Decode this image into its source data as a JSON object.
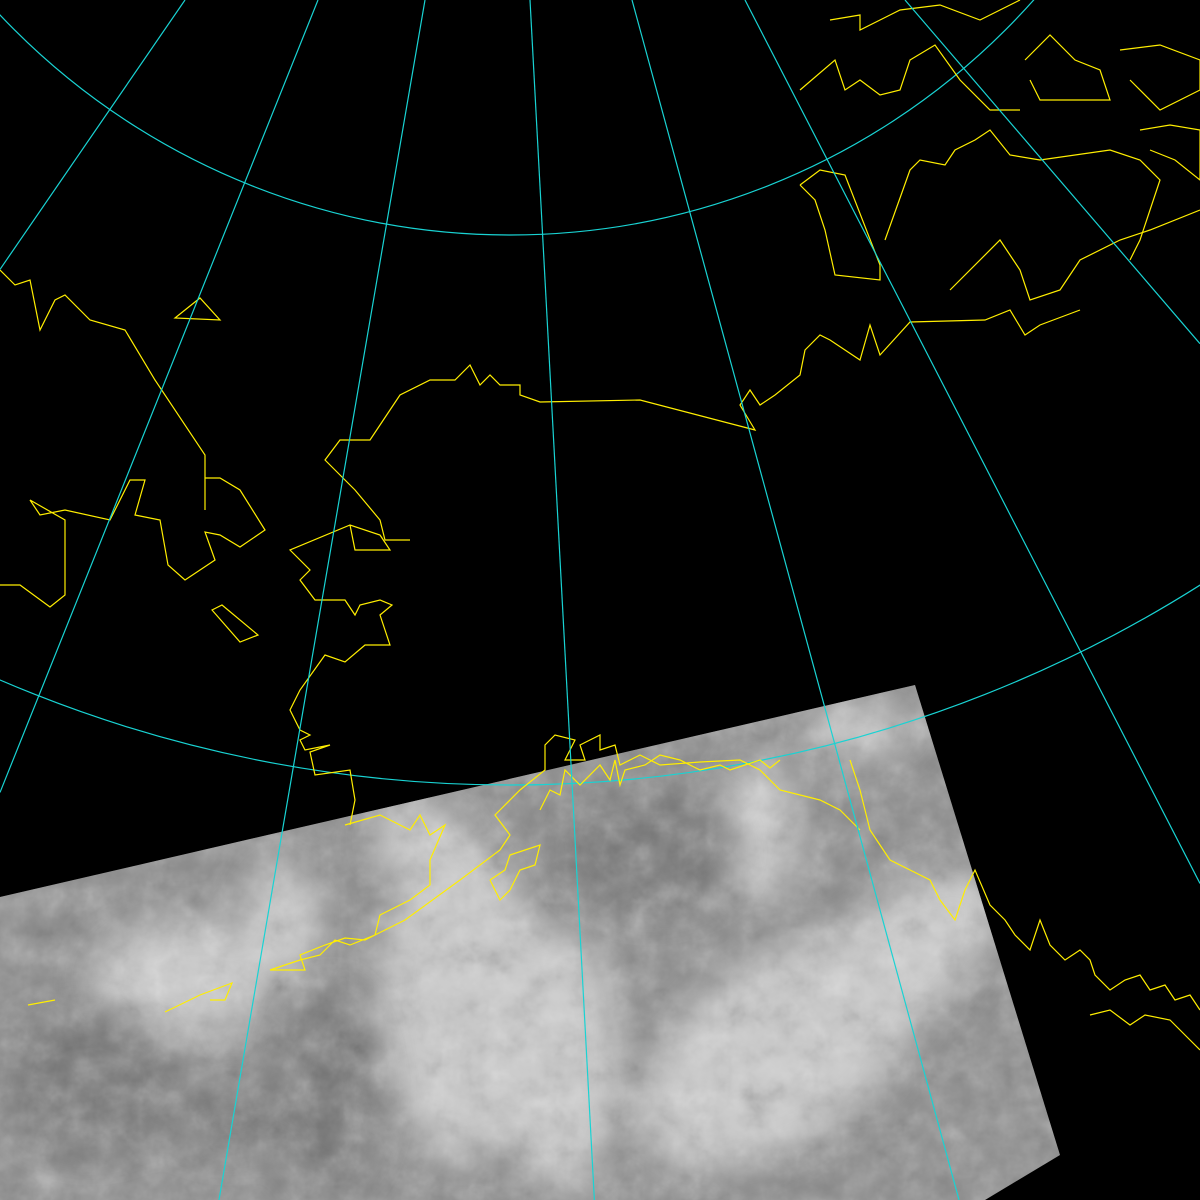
{
  "map": {
    "projection": "polar-stereographic",
    "layers": [
      "satellite-ir-swath",
      "graticule",
      "coastlines"
    ],
    "colors": {
      "background": "#000000",
      "graticule": "#19d3d3",
      "coastline": "#ffee00",
      "swath_base": "#8a8a8a",
      "cloud": "#dcdcdc"
    }
  }
}
